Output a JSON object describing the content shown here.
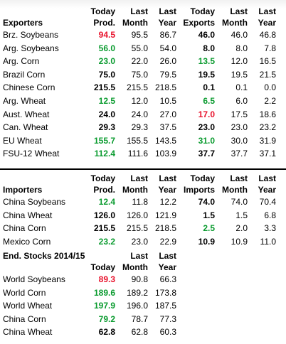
{
  "exporters": {
    "title": "Exporters",
    "headers": {
      "prod_top": "Today",
      "prod_bottom": "Prod.",
      "lm_top": "Last",
      "lm_bottom": "Month",
      "ly_top": "Last",
      "ly_bottom": "Year",
      "exp_top": "Today",
      "exp_bottom": "Exports",
      "elm_top": "Last",
      "elm_bottom": "Month",
      "ely_top": "Last",
      "ely_bottom": "Year"
    },
    "rows": [
      {
        "name": "Brz. Soybeans",
        "prod": "94.5",
        "prod_color": "red",
        "lm": "95.5",
        "ly": "86.7",
        "exp": "46.0",
        "exp_color": "black",
        "elm": "46.0",
        "ely": "46.8"
      },
      {
        "name": "Arg. Soybeans",
        "prod": "56.0",
        "prod_color": "green",
        "lm": "55.0",
        "ly": "54.0",
        "exp": "8.0",
        "exp_color": "black",
        "elm": "8.0",
        "ely": "7.8"
      },
      {
        "name": "Arg. Corn",
        "prod": "23.0",
        "prod_color": "green",
        "lm": "22.0",
        "ly": "26.0",
        "exp": "13.5",
        "exp_color": "green",
        "elm": "12.0",
        "ely": "16.5"
      },
      {
        "name": "Brazil Corn",
        "prod": "75.0",
        "prod_color": "black",
        "lm": "75.0",
        "ly": "79.5",
        "exp": "19.5",
        "exp_color": "black",
        "elm": "19.5",
        "ely": "21.5"
      },
      {
        "name": "Chinese Corn",
        "prod": "215.5",
        "prod_color": "black",
        "lm": "215.5",
        "ly": "218.5",
        "exp": "0.1",
        "exp_color": "black",
        "elm": "0.1",
        "ely": "0.0"
      },
      {
        "name": "Arg. Wheat",
        "prod": "12.5",
        "prod_color": "green",
        "lm": "12.0",
        "ly": "10.5",
        "exp": "6.5",
        "exp_color": "green",
        "elm": "6.0",
        "ely": "2.2"
      },
      {
        "name": "Aust. Wheat",
        "prod": "24.0",
        "prod_color": "black",
        "lm": "24.0",
        "ly": "27.0",
        "exp": "17.0",
        "exp_color": "red",
        "elm": "17.5",
        "ely": "18.6"
      },
      {
        "name": "Can. Wheat",
        "prod": "29.3",
        "prod_color": "black",
        "lm": "29.3",
        "ly": "37.5",
        "exp": "23.0",
        "exp_color": "black",
        "elm": "23.0",
        "ely": "23.2"
      },
      {
        "name": "EU Wheat",
        "prod": "155.7",
        "prod_color": "green",
        "lm": "155.5",
        "ly": "143.5",
        "exp": "31.0",
        "exp_color": "green",
        "elm": "30.0",
        "ely": "31.9"
      },
      {
        "name": "FSU-12 Wheat",
        "prod": "112.4",
        "prod_color": "green",
        "lm": "111.6",
        "ly": "103.9",
        "exp": "37.7",
        "exp_color": "black",
        "elm": "37.7",
        "ely": "37.1"
      }
    ]
  },
  "importers": {
    "title": "Importers",
    "headers": {
      "prod_top": "Today",
      "prod_bottom": "Prod.",
      "lm_top": "Last",
      "lm_bottom": "Month",
      "ly_top": "Last",
      "ly_bottom": "Year",
      "imp_top": "Today",
      "imp_bottom": "Imports",
      "ilm_top": "Last",
      "ilm_bottom": "Month",
      "ily_top": "Last",
      "ily_bottom": "Year"
    },
    "rows": [
      {
        "name": "China Soybeans",
        "prod": "12.4",
        "prod_color": "green",
        "lm": "11.8",
        "ly": "12.2",
        "imp": "74.0",
        "imp_color": "black",
        "ilm": "74.0",
        "ily": "70.4"
      },
      {
        "name": "China Wheat",
        "prod": "126.0",
        "prod_color": "black",
        "lm": "126.0",
        "ly": "121.9",
        "imp": "1.5",
        "imp_color": "black",
        "ilm": "1.5",
        "ily": "6.8"
      },
      {
        "name": "China Corn",
        "prod": "215.5",
        "prod_color": "black",
        "lm": "215.5",
        "ly": "218.5",
        "imp": "2.5",
        "imp_color": "green",
        "ilm": "2.0",
        "ily": "3.3"
      },
      {
        "name": "Mexico Corn",
        "prod": "23.2",
        "prod_color": "green",
        "lm": "23.0",
        "ly": "22.9",
        "imp": "10.9",
        "imp_color": "black",
        "ilm": "10.9",
        "ily": "11.0"
      }
    ]
  },
  "end_stocks": {
    "title": "End. Stocks 2014/15",
    "headers": {
      "today": "Today",
      "lm_top": "Last",
      "lm_bottom": "Month",
      "ly_top": "Last",
      "ly_bottom": "Year"
    },
    "rows": [
      {
        "name": "World Soybeans",
        "today": "89.3",
        "today_color": "red",
        "lm": "90.8",
        "ly": "66.3"
      },
      {
        "name": "World Corn",
        "today": "189.6",
        "today_color": "green",
        "lm": "189.2",
        "ly": "173.8"
      },
      {
        "name": "World Wheat",
        "today": "197.9",
        "today_color": "green",
        "lm": "196.0",
        "ly": "187.5"
      },
      {
        "name": "China Corn",
        "today": "79.2",
        "today_color": "green",
        "lm": "78.7",
        "ly": "77.3"
      },
      {
        "name": "China Wheat",
        "today": "62.8",
        "today_color": "black",
        "lm": "62.8",
        "ly": "60.3"
      }
    ]
  }
}
